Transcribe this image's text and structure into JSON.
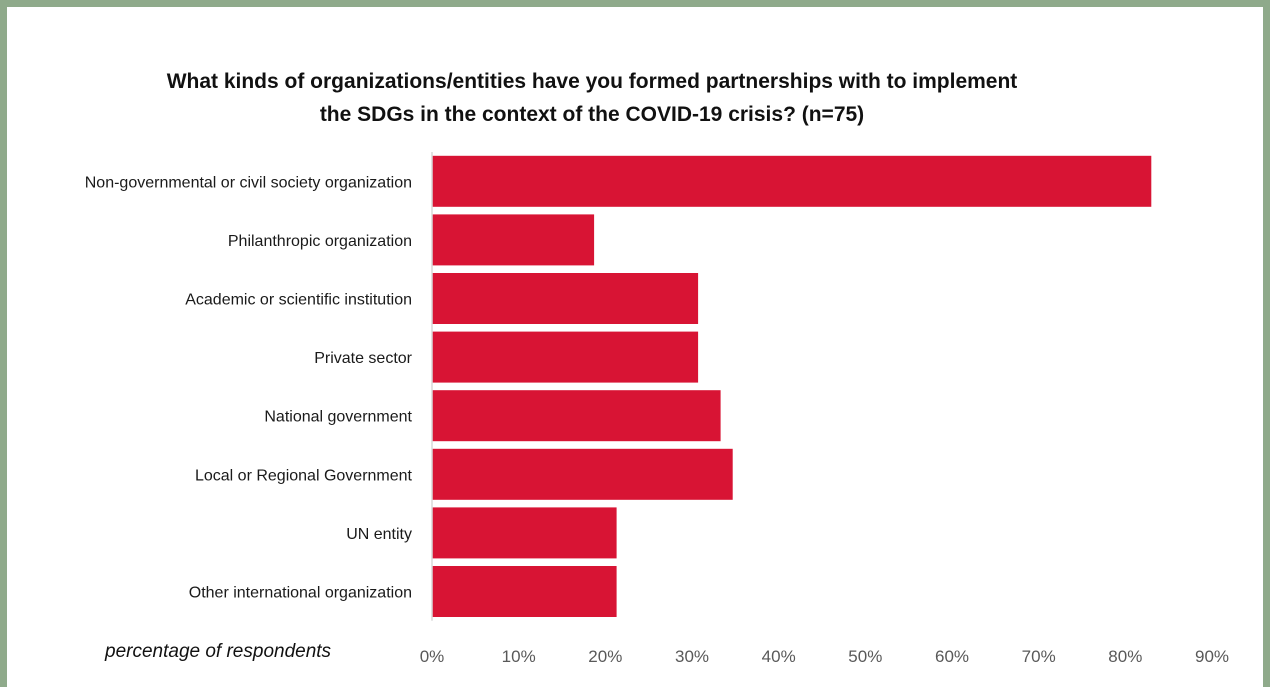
{
  "chart_data": {
    "type": "bar",
    "orientation": "horizontal",
    "title_lines": [
      "What kinds of organizations/entities have you formed partnerships with to implement",
      "the SDGs in the context of the COVID-19 crisis? (n=75)"
    ],
    "xlabel": "percentage of respondents",
    "ylabel": "",
    "categories": [
      "Non-governmental or civil society organization",
      "Philanthropic organization",
      "Academic or scientific institution",
      "Private sector",
      "National government",
      "Local or Regional Government",
      "UN entity",
      "Other international organization"
    ],
    "values": [
      83,
      18.7,
      30.7,
      30.7,
      33.3,
      34.7,
      21.3,
      21.3
    ],
    "xlim": [
      0,
      90
    ],
    "ticks": [
      "0%",
      "10%",
      "20%",
      "30%",
      "40%",
      "50%",
      "60%",
      "70%",
      "80%",
      "90%"
    ],
    "tick_values": [
      0,
      10,
      20,
      30,
      40,
      50,
      60,
      70,
      80,
      90
    ],
    "bar_color": "#d81434",
    "grid": false,
    "legend": "none"
  },
  "colors": {
    "frame_border": "#8faa8b",
    "axis_line": "#d9d9d9"
  }
}
